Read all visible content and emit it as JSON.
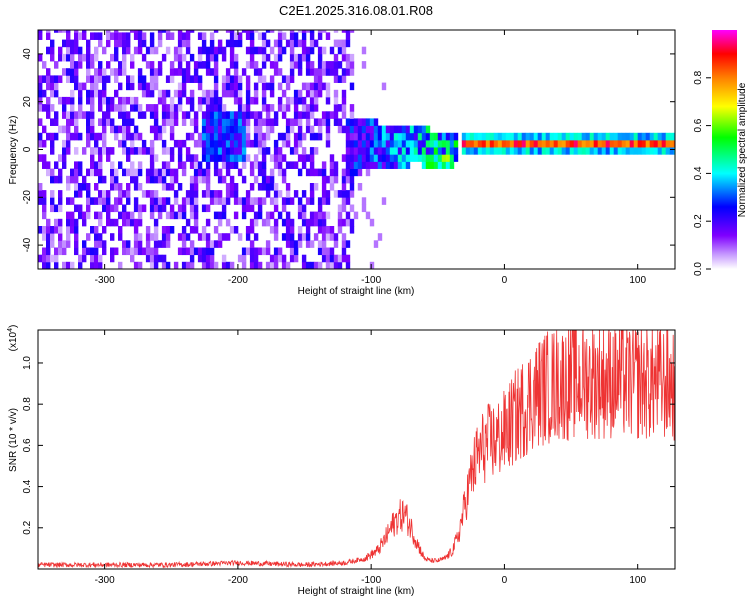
{
  "title": "C2E1.2025.316.08.01.R08",
  "chart_data": [
    {
      "type": "heatmap",
      "title": "",
      "xlabel": "Height of straight line (km)",
      "ylabel": "Frequency (Hz)",
      "xlim": [
        -350,
        128
      ],
      "ylim": [
        -50,
        50
      ],
      "x_ticks": [
        -300,
        -200,
        -100,
        0,
        100
      ],
      "x_tick_labels": [
        "-300",
        "-200",
        "-100",
        "0",
        "100"
      ],
      "y_ticks": [
        -40,
        -20,
        0,
        20,
        40
      ],
      "y_tick_labels": [
        "-40",
        "-20",
        "0",
        "20",
        "40"
      ],
      "colorbar": {
        "label": "Normalized spectral amplitude",
        "range": [
          0,
          1
        ],
        "ticks": [
          0.0,
          0.2,
          0.4,
          0.6,
          0.8
        ],
        "tick_labels": [
          "0.0",
          "0.2",
          "0.4",
          "0.6",
          "0.8"
        ],
        "colors": [
          "#ffffff",
          "#7f00ff",
          "#0000ff",
          "#00ffff",
          "#00ff00",
          "#ffff00",
          "#ff8000",
          "#ff0000",
          "#ff00ff"
        ]
      },
      "features": [
        {
          "name": "broadband noise",
          "x_range": [
            -350,
            -115
          ],
          "freq_range": [
            -50,
            50
          ],
          "amplitude": 0.15
        },
        {
          "name": "noise cluster",
          "x_range": [
            -230,
            -195
          ],
          "freq_center": 4,
          "amplitude": 0.2
        },
        {
          "name": "onset band",
          "x_range": [
            -120,
            -35
          ],
          "freq_center": 0,
          "amplitude": 0.35
        },
        {
          "name": "dip",
          "x_range": [
            -65,
            -40
          ],
          "freq_center": -6,
          "amplitude": 0.55
        },
        {
          "name": "coherent signal line",
          "x_range": [
            -35,
            128
          ],
          "freq_center": 1,
          "amplitude": 0.9
        }
      ]
    },
    {
      "type": "line",
      "title": "",
      "xlabel": "Height of straight line (km)",
      "ylabel": "SNR (10 * v/v)",
      "y_scale_label": "(x10",
      "y_scale_exponent": "4",
      "y_scale_close": ")",
      "xlim": [
        -350,
        128
      ],
      "ylim": [
        0,
        1.16
      ],
      "x_ticks": [
        -300,
        -200,
        -100,
        0,
        100
      ],
      "x_tick_labels": [
        "-300",
        "-200",
        "-100",
        "0",
        "100"
      ],
      "y_ticks": [
        0.2,
        0.4,
        0.6,
        0.8,
        1.0
      ],
      "y_tick_labels": [
        "0.2",
        "0.4",
        "0.6",
        "0.8",
        "1.0"
      ],
      "color": "#ee3333",
      "series": [
        {
          "name": "SNR",
          "x": [
            -350,
            -300,
            -250,
            -200,
            -150,
            -120,
            -105,
            -95,
            -90,
            -85,
            -80,
            -75,
            -70,
            -65,
            -60,
            -55,
            -50,
            -45,
            -40,
            -35,
            -30,
            -25,
            -20,
            -15,
            -10,
            -5,
            0,
            10,
            20,
            30,
            40,
            60,
            80,
            100,
            128
          ],
          "y": [
            0.02,
            0.02,
            0.02,
            0.03,
            0.02,
            0.03,
            0.05,
            0.09,
            0.14,
            0.2,
            0.25,
            0.27,
            0.2,
            0.12,
            0.05,
            0.04,
            0.04,
            0.05,
            0.08,
            0.15,
            0.3,
            0.45,
            0.55,
            0.6,
            0.62,
            0.63,
            0.66,
            0.75,
            0.83,
            0.88,
            0.9,
            0.92,
            0.92,
            0.91,
            0.9
          ]
        }
      ]
    }
  ]
}
